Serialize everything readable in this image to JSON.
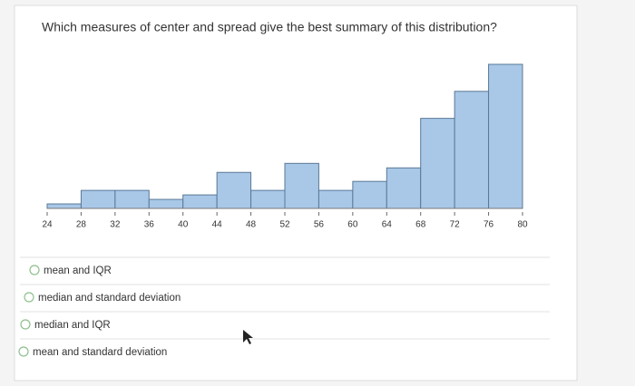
{
  "question": "Which measures of center and spread give the best summary of this distribution?",
  "chart_data": {
    "type": "histogram",
    "bins": [
      24,
      28,
      32,
      36,
      40,
      44,
      48,
      52,
      56,
      60,
      64,
      68,
      72,
      76,
      80
    ],
    "values": [
      1,
      4,
      4,
      2,
      3,
      8,
      4,
      10,
      4,
      6,
      9,
      20,
      26,
      32
    ],
    "color": "#a9c8e8",
    "xlim": [
      24,
      80
    ],
    "xticks": [
      24,
      28,
      32,
      36,
      40,
      44,
      48,
      52,
      56,
      60,
      64,
      68,
      72,
      76,
      80
    ],
    "ylim": [
      0,
      32
    ]
  },
  "options": [
    "mean and IQR",
    "median and standard deviation",
    "median and IQR",
    "mean and standard deviation"
  ]
}
